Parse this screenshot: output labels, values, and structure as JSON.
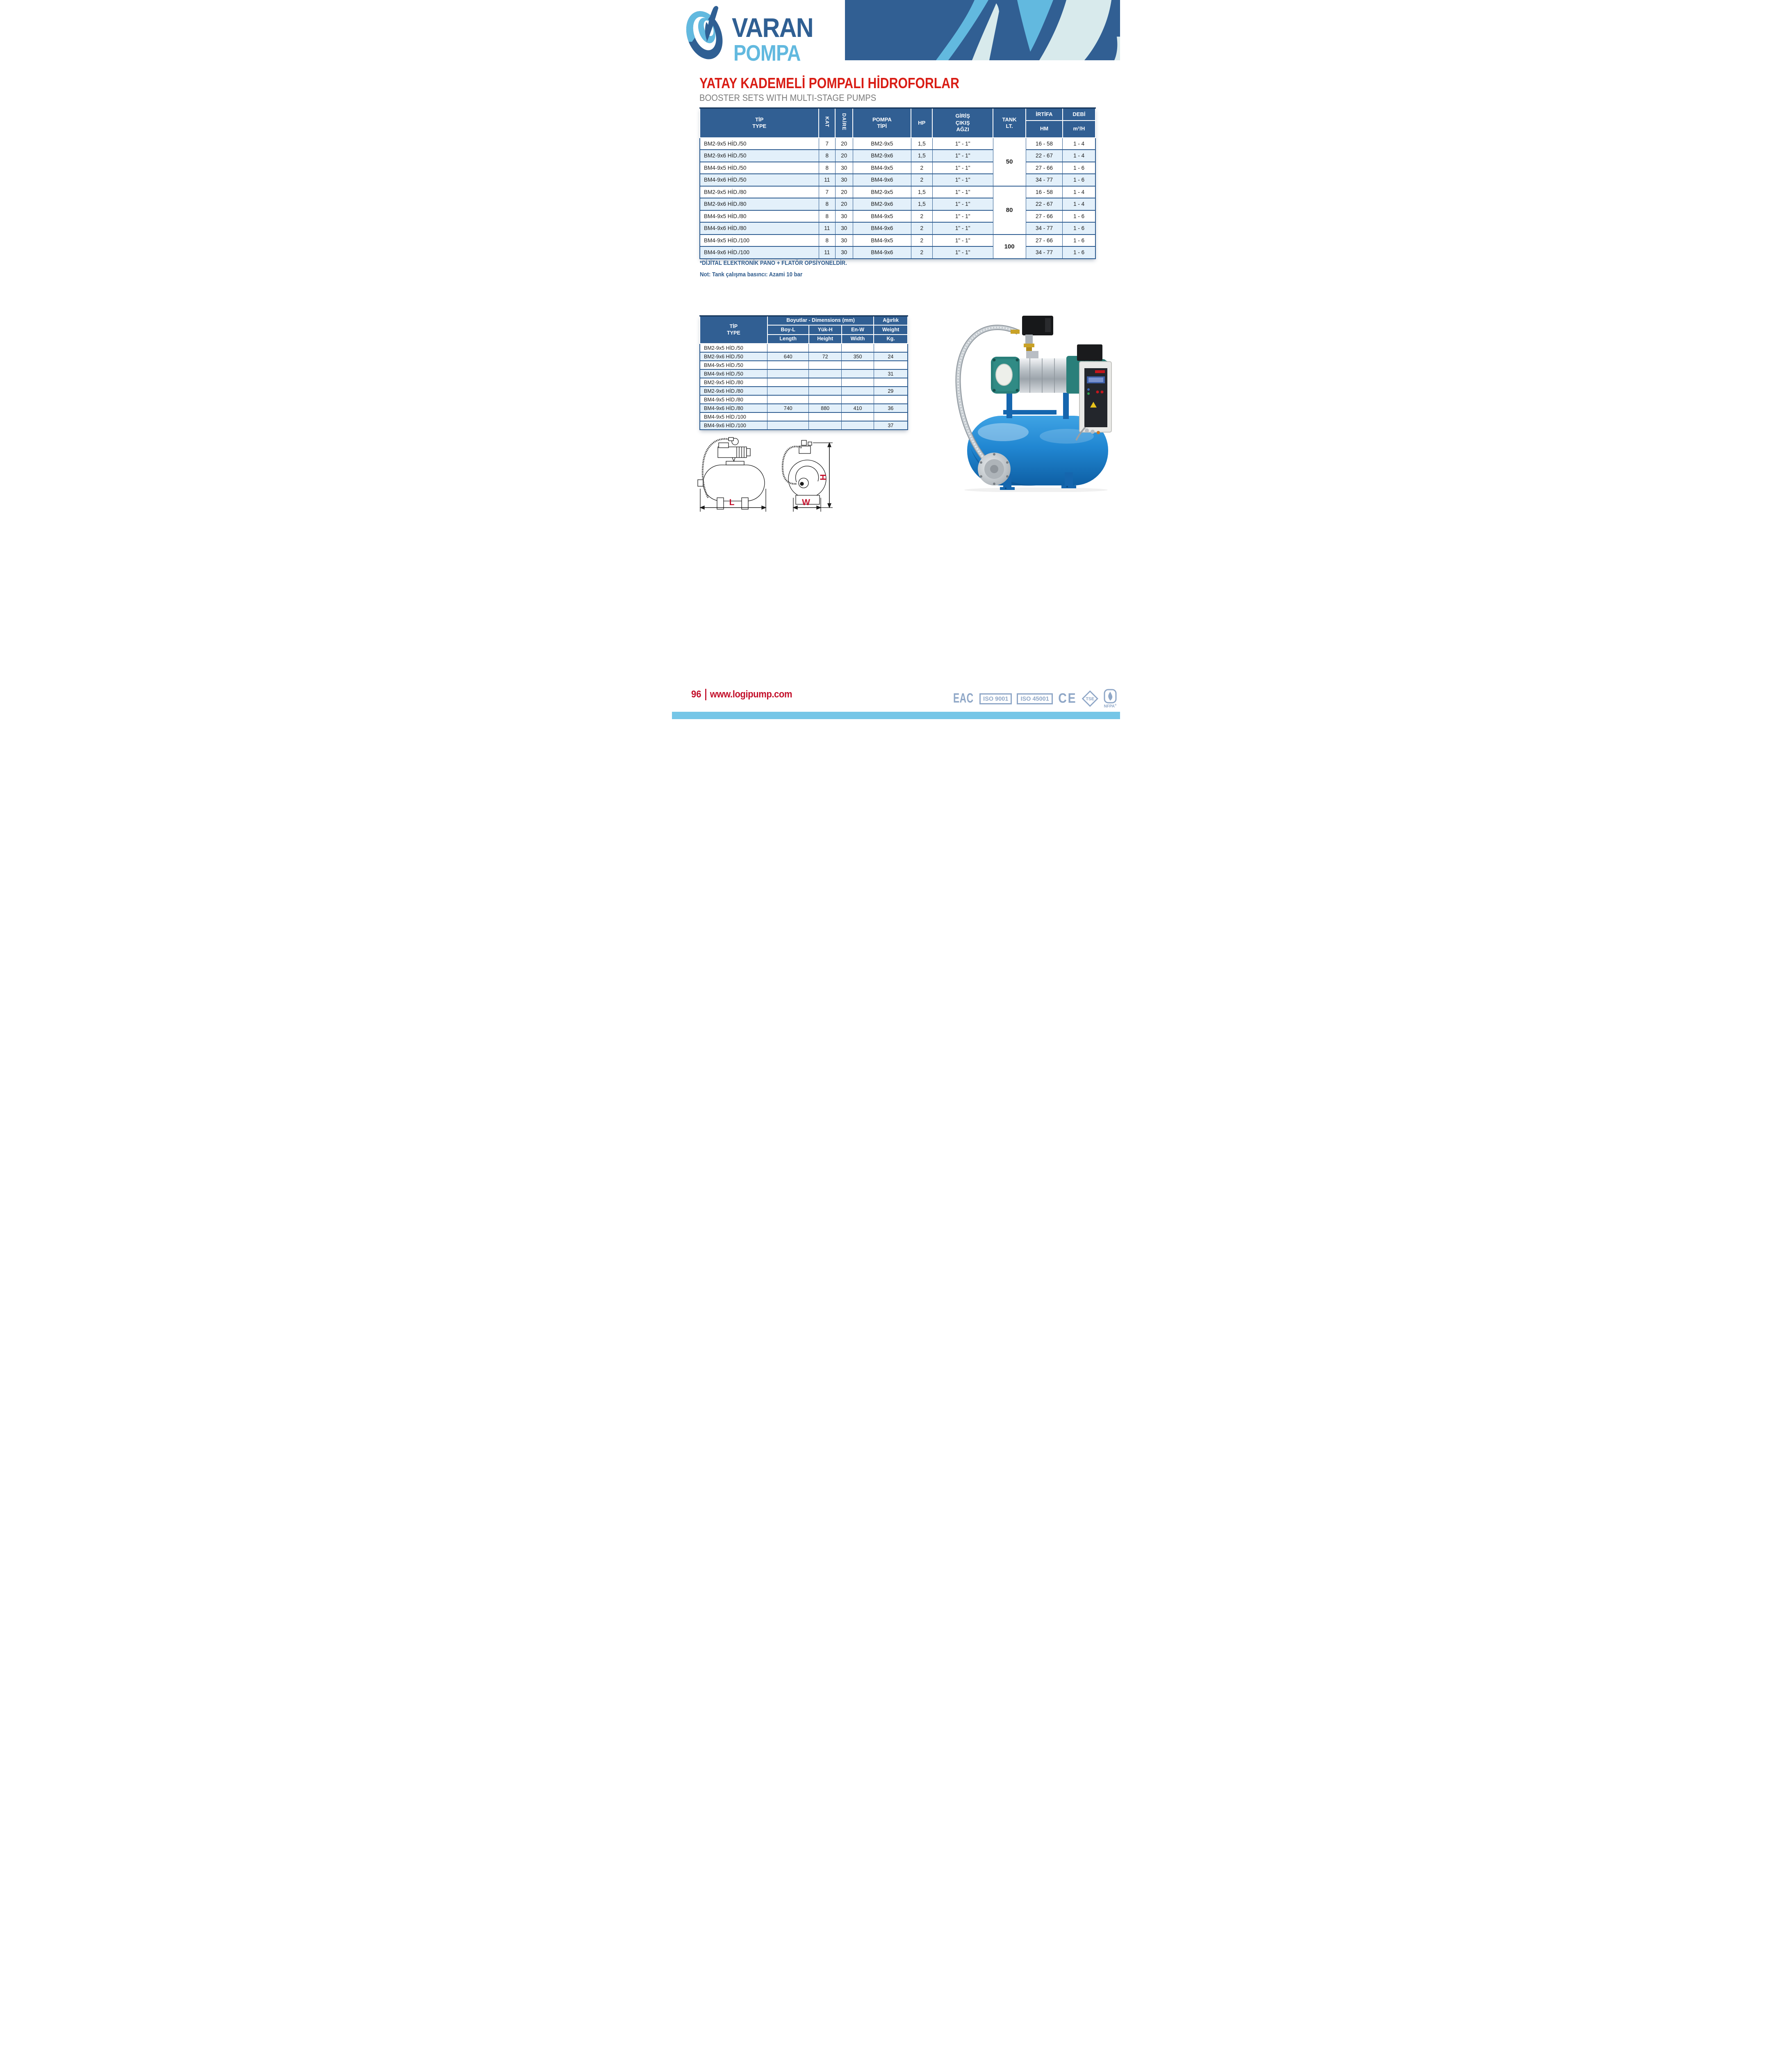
{
  "brand": {
    "word_top": "VARAN",
    "word_bottom": "POMPA"
  },
  "header": {
    "title": "YATAY KADEMELİ POMPALI HİDROFORLAR",
    "subtitle": "BOOSTER SETS WITH MULTI-STAGE PUMPS"
  },
  "colors": {
    "dark_blue": "#315F93",
    "light_blue": "#62B9DF",
    "pale_band": "#D8EAEC",
    "row_alt": "#E3F0FA",
    "table_border": "#2B5A8F",
    "title_red": "#D91C14",
    "footer_red": "#C3102B",
    "note_navy": "#2D5A8C",
    "subtitle_gray": "#7A7A7A",
    "cert_steel": "#8FA7C7",
    "bottom_bar": "#75C6E7",
    "tank_blue": "#1B78C4",
    "pump_teal": "#2A7F7A"
  },
  "main_table": {
    "headers": {
      "tip_line1": "TİP",
      "tip_line2": "TYPE",
      "kat": "KAT",
      "daire": "DAİRE",
      "pompa_line1": "POMPA",
      "pompa_line2": "TİPİ",
      "hp": "HP",
      "giris_line1": "GİRİŞ",
      "giris_line2": "ÇIKIŞ",
      "giris_line3": "AĞZI",
      "tank_line1": "TANK",
      "tank_line2": "LT.",
      "irtifa": "İRTİFA",
      "irtifa_sub": "HM",
      "debi": "DEBİ",
      "debi_sub": "m³/H"
    },
    "tank_groups": [
      {
        "start": 0,
        "span": 4,
        "value": "50"
      },
      {
        "start": 4,
        "span": 4,
        "value": "80"
      },
      {
        "start": 8,
        "span": 2,
        "value": "100"
      }
    ],
    "rows": [
      {
        "type": "BM2-9x5 HİD./50",
        "kat": "7",
        "daire": "20",
        "pompa": "BM2-9x5",
        "hp": "1,5",
        "giris": "1\" - 1\"",
        "irtifa": "16 - 58",
        "debi": "1 - 4"
      },
      {
        "type": "BM2-9x6 HİD./50",
        "kat": "8",
        "daire": "20",
        "pompa": "BM2-9x6",
        "hp": "1,5",
        "giris": "1\" - 1\"",
        "irtifa": "22 - 67",
        "debi": "1 - 4"
      },
      {
        "type": "BM4-9x5 HİD./50",
        "kat": "8",
        "daire": "30",
        "pompa": "BM4-9x5",
        "hp": "2",
        "giris": "1\" - 1\"",
        "irtifa": "27 - 66",
        "debi": "1 - 6"
      },
      {
        "type": "BM4-9x6 HİD./50",
        "kat": "11",
        "daire": "30",
        "pompa": "BM4-9x6",
        "hp": "2",
        "giris": "1\" - 1\"",
        "irtifa": "34 - 77",
        "debi": "1 - 6"
      },
      {
        "type": "BM2-9x5 HİD./80",
        "kat": "7",
        "daire": "20",
        "pompa": "BM2-9x5",
        "hp": "1,5",
        "giris": "1\" - 1\"",
        "irtifa": "16 - 58",
        "debi": "1 - 4"
      },
      {
        "type": "BM2-9x6 HİD./80",
        "kat": "8",
        "daire": "20",
        "pompa": "BM2-9x6",
        "hp": "1,5",
        "giris": "1\" - 1\"",
        "irtifa": "22 - 67",
        "debi": "1 - 4"
      },
      {
        "type": "BM4-9x5 HİD./80",
        "kat": "8",
        "daire": "30",
        "pompa": "BM4-9x5",
        "hp": "2",
        "giris": "1\" - 1\"",
        "irtifa": "27 - 66",
        "debi": "1 - 6"
      },
      {
        "type": "BM4-9x6 HİD./80",
        "kat": "11",
        "daire": "30",
        "pompa": "BM4-9x6",
        "hp": "2",
        "giris": "1\" - 1\"",
        "irtifa": "34 - 77",
        "debi": "1 - 6"
      },
      {
        "type": "BM4-9x5 HİD./100",
        "kat": "8",
        "daire": "30",
        "pompa": "BM4-9x5",
        "hp": "2",
        "giris": "1\" - 1\"",
        "irtifa": "27 - 66",
        "debi": "1 - 6"
      },
      {
        "type": "BM4-9x6 HİD./100",
        "kat": "11",
        "daire": "30",
        "pompa": "BM4-9x6",
        "hp": "2",
        "giris": "1\" - 1\"",
        "irtifa": "34 - 77",
        "debi": "1 - 6"
      }
    ]
  },
  "notes": {
    "line1": "*DİJİTAL ELEKTRONİK PANO + FLATÖR OPSİYONELDİR.",
    "line2": "Not: Tank çalışma basıncı: Azami 10 bar"
  },
  "dim_table": {
    "headers": {
      "tip_line1": "TİP",
      "tip_line2": "TYPE",
      "group": "Boyutlar -  Dimensions (mm)",
      "agirlik": "Ağırlık",
      "boy": "Boy-L",
      "yuk": "Yük-H",
      "en": "En-W",
      "weight": "Weight",
      "length": "Length",
      "height": "Height",
      "width": "Width",
      "kg": "Kg."
    },
    "rows": [
      {
        "type": "BM2-9x5 HİD./50",
        "boy": "",
        "yuk": "",
        "en": "",
        "weight": ""
      },
      {
        "type": "BM2-9x6 HİD./50",
        "boy": "640",
        "yuk": "72",
        "en": "350",
        "weight": "24"
      },
      {
        "type": "BM4-9x5 HİD./50",
        "boy": "",
        "yuk": "",
        "en": "",
        "weight": ""
      },
      {
        "type": "BM4-9x6 HİD./50",
        "boy": "",
        "yuk": "",
        "en": "",
        "weight": "31"
      },
      {
        "type": "BM2-9x5 HİD./80",
        "boy": "",
        "yuk": "",
        "en": "",
        "weight": ""
      },
      {
        "type": "BM2-9x6 HİD./80",
        "boy": "",
        "yuk": "",
        "en": "",
        "weight": "29"
      },
      {
        "type": "BM4-9x5 HİD./80",
        "boy": "",
        "yuk": "",
        "en": "",
        "weight": ""
      },
      {
        "type": "BM4-9x6 HİD./80",
        "boy": "740",
        "yuk": "880",
        "en": "410",
        "weight": "36"
      },
      {
        "type": "BM4-9x5 HİD./100",
        "boy": "",
        "yuk": "",
        "en": "",
        "weight": ""
      },
      {
        "type": "BM4-9x6 HİD./100",
        "boy": "",
        "yuk": "",
        "en": "",
        "weight": "37"
      }
    ]
  },
  "drawings": {
    "label_l": "L",
    "label_w": "W",
    "label_h": "H"
  },
  "footer": {
    "page_number": "96",
    "website": "www.logipump.com",
    "certs": {
      "eac": "EAC",
      "iso9001": "ISO 9001",
      "iso45001": "ISO 45001",
      "ce": "CE",
      "tse": "TSE",
      "nfpa": "NFPA",
      "nfpa_r": "®"
    }
  }
}
